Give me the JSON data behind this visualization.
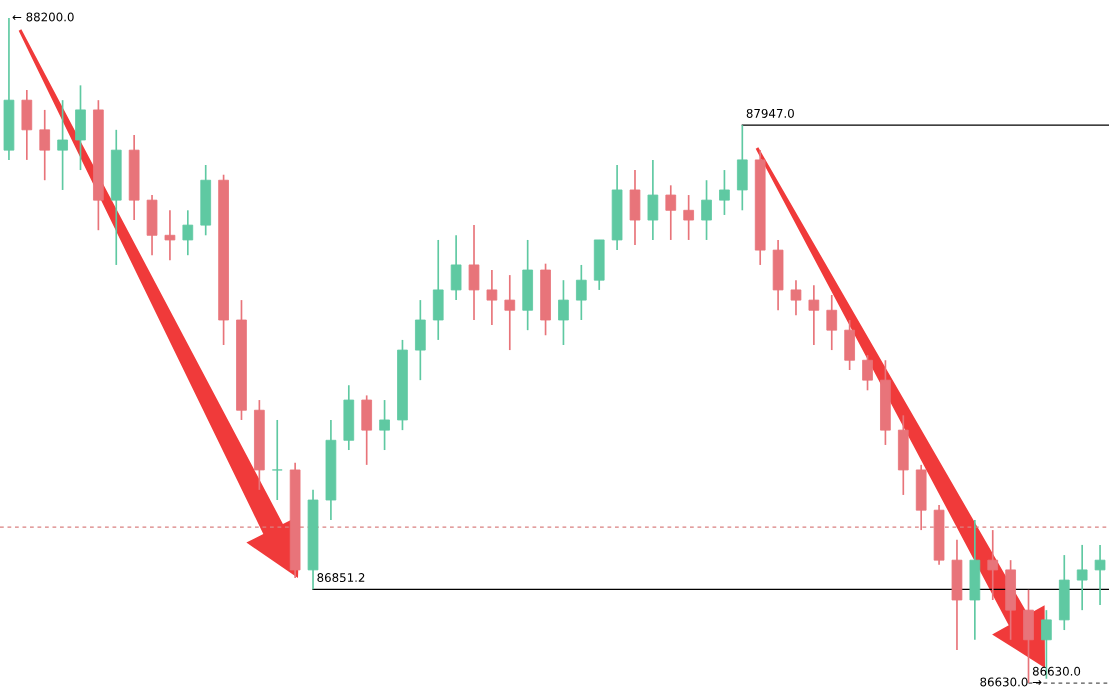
{
  "chart_data": {
    "type": "candlestick",
    "categories": [
      null,
      null,
      null,
      null,
      null,
      null,
      null,
      null,
      null,
      null,
      null,
      null,
      null,
      null,
      null,
      null,
      null,
      null,
      null,
      null,
      null,
      null,
      null,
      null,
      null,
      null,
      null,
      null,
      null,
      null,
      null,
      null,
      null,
      null,
      null,
      null,
      null,
      null,
      null,
      null,
      null,
      null,
      null,
      null,
      null,
      null,
      null,
      null,
      null,
      null,
      null,
      null,
      null,
      null,
      null,
      null,
      null,
      null,
      null,
      null,
      null,
      null
    ],
    "ohlc": [
      [
        87888,
        88200,
        87865,
        88006
      ],
      [
        88006,
        88030,
        87865,
        87936
      ],
      [
        87936,
        87983,
        87817,
        87888
      ],
      [
        87888,
        88006,
        87794,
        87912
      ],
      [
        87912,
        88041,
        87841,
        87983
      ],
      [
        87983,
        88006,
        87699,
        87770
      ],
      [
        87770,
        87936,
        87617,
        87888
      ],
      [
        87888,
        87924,
        87723,
        87770
      ],
      [
        87770,
        87782,
        87640,
        87687
      ],
      [
        87687,
        87746,
        87628,
        87676
      ],
      [
        87676,
        87746,
        87640,
        87711
      ],
      [
        87711,
        87853,
        87687,
        87817
      ],
      [
        87817,
        87830,
        87428,
        87487
      ],
      [
        87487,
        87534,
        87251,
        87274
      ],
      [
        87274,
        87298,
        87086,
        87133
      ],
      [
        87133,
        87251,
        87062,
        87133
      ],
      [
        87133,
        87150,
        86878,
        86897
      ],
      [
        86897,
        87086,
        86851.2,
        87062
      ],
      [
        87062,
        87251,
        87015,
        87203
      ],
      [
        87203,
        87333,
        87180,
        87298
      ],
      [
        87298,
        87309,
        87145,
        87227
      ],
      [
        87227,
        87298,
        87180,
        87251
      ],
      [
        87251,
        87440,
        87227,
        87416
      ],
      [
        87416,
        87534,
        87345,
        87487
      ],
      [
        87487,
        87676,
        87440,
        87558
      ],
      [
        87558,
        87687,
        87534,
        87617
      ],
      [
        87617,
        87711,
        87487,
        87558
      ],
      [
        87558,
        87605,
        87475,
        87534
      ],
      [
        87534,
        87593,
        87416,
        87510
      ],
      [
        87510,
        87676,
        87463,
        87605
      ],
      [
        87605,
        87620,
        87451,
        87487
      ],
      [
        87487,
        87581,
        87428,
        87534
      ],
      [
        87534,
        87617,
        87487,
        87581
      ],
      [
        87581,
        87676,
        87558,
        87676
      ],
      [
        87676,
        87853,
        87652,
        87794
      ],
      [
        87794,
        87841,
        87664,
        87723
      ],
      [
        87723,
        87865,
        87676,
        87782
      ],
      [
        87782,
        87805,
        87676,
        87746
      ],
      [
        87746,
        87782,
        87676,
        87723
      ],
      [
        87723,
        87817,
        87676,
        87770
      ],
      [
        87770,
        87841,
        87735,
        87794
      ],
      [
        87794,
        87947,
        87746,
        87865
      ],
      [
        87865,
        87888,
        87617,
        87652
      ],
      [
        87652,
        87676,
        87510,
        87558
      ],
      [
        87558,
        87581,
        87498,
        87534
      ],
      [
        87534,
        87569,
        87428,
        87510
      ],
      [
        87510,
        87546,
        87416,
        87463
      ],
      [
        87463,
        87487,
        87369,
        87392
      ],
      [
        87392,
        87404,
        87321,
        87345
      ],
      [
        87345,
        87392,
        87192,
        87227
      ],
      [
        87227,
        87262,
        87074,
        87133
      ],
      [
        87133,
        87145,
        86991,
        87038
      ],
      [
        87038,
        87050,
        86909,
        86920
      ],
      [
        86920,
        86968,
        86708,
        86826
      ],
      [
        86826,
        87015,
        86732,
        86920
      ],
      [
        86920,
        86991,
        86826,
        86897
      ],
      [
        86897,
        86920,
        86732,
        86802
      ],
      [
        86802,
        86850,
        86630,
        86732
      ],
      [
        86732,
        86802,
        86640,
        86779
      ],
      [
        86779,
        86932,
        86755,
        86873
      ],
      [
        86873,
        86956,
        86802,
        86897
      ],
      [
        86897,
        86956,
        86814,
        86920
      ]
    ],
    "colors": [
      "#5fc9a2",
      "#e8747a",
      "#e8747a",
      "#5fc9a2",
      "#5fc9a2",
      "#e8747a",
      "#5fc9a2",
      "#e8747a",
      "#e8747a",
      "#e8747a",
      "#5fc9a2",
      "#5fc9a2",
      "#e8747a",
      "#e8747a",
      "#e8747a",
      "#5fc9a2",
      "#e8747a",
      "#5fc9a2",
      "#5fc9a2",
      "#5fc9a2",
      "#e8747a",
      "#5fc9a2",
      "#5fc9a2",
      "#5fc9a2",
      "#5fc9a2",
      "#5fc9a2",
      "#e8747a",
      "#e8747a",
      "#e8747a",
      "#5fc9a2",
      "#e8747a",
      "#5fc9a2",
      "#5fc9a2",
      "#5fc9a2",
      "#5fc9a2",
      "#e8747a",
      "#5fc9a2",
      "#e8747a",
      "#e8747a",
      "#5fc9a2",
      "#5fc9a2",
      "#5fc9a2",
      "#e8747a",
      "#e8747a",
      "#e8747a",
      "#e8747a",
      "#e8747a",
      "#e8747a",
      "#e8747a",
      "#e8747a",
      "#e8747a",
      "#e8747a",
      "#e8747a",
      "#e8747a",
      "#5fc9a2",
      "#e8747a",
      "#e8747a",
      "#e8747a",
      "#5fc9a2",
      "#5fc9a2",
      "#5fc9a2",
      "#5fc9a2"
    ],
    "ref_lines": [
      {
        "axis": "y",
        "value": 87947,
        "label": "87947.0",
        "color": "#000000",
        "line_style": "solid"
      },
      {
        "axis": "y",
        "value": 86851.2,
        "label": "86851.2",
        "color": "#000000",
        "line_style": "solid"
      },
      {
        "axis": "y",
        "value": 86998,
        "color": "#d98080",
        "line_style": "dashed"
      },
      {
        "axis": "y",
        "value": 86630,
        "label": "86630.0",
        "color": "#555555",
        "line_style": "dashed"
      }
    ],
    "annotations": [
      "← 88200.0",
      "86630.0 →"
    ]
  }
}
